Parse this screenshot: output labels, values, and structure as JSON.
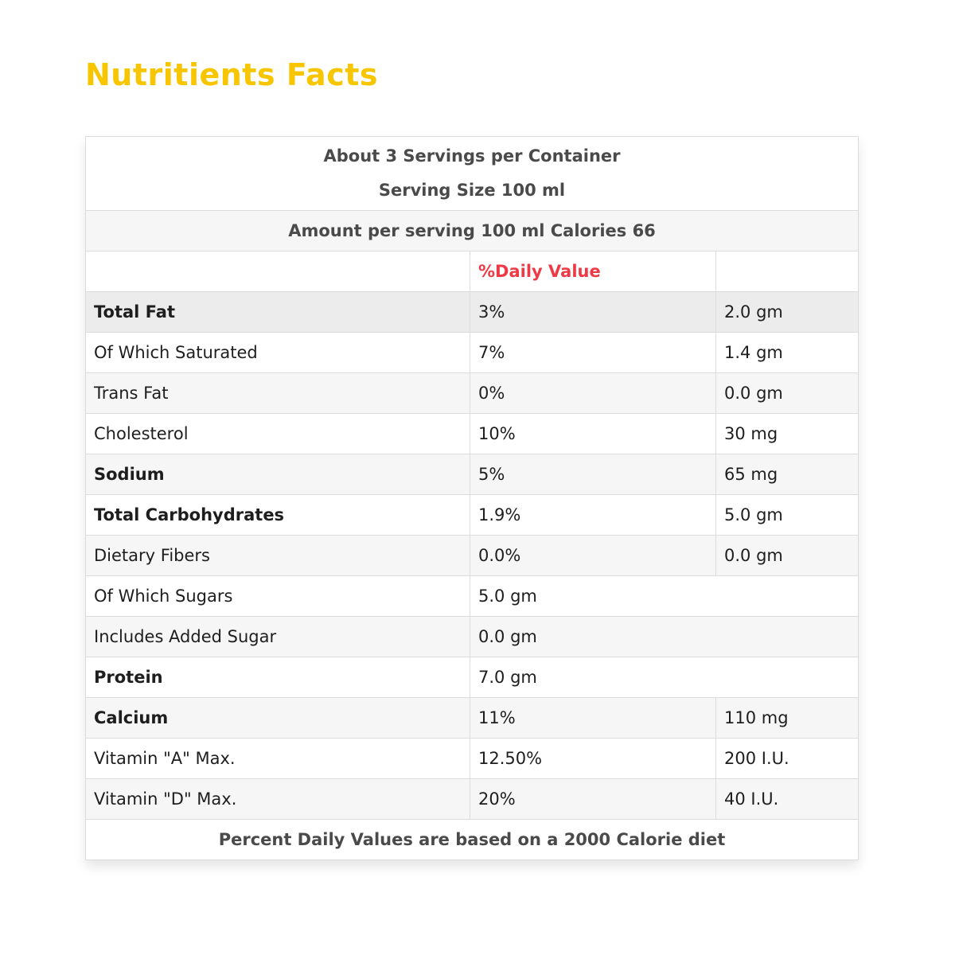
{
  "title": "Nutritients Facts",
  "table": {
    "header": [
      "About 3 Servings per Container",
      "Serving Size 100 ml"
    ],
    "amount": "Amount per serving 100 ml Calories 66",
    "daily_value_header": "%Daily Value",
    "rows": [
      [
        "Total Fat",
        "3%",
        "2.0 gm"
      ],
      [
        "Of Which Saturated",
        "7%",
        "1.4 gm"
      ],
      [
        "Trans Fat",
        "0%",
        "0.0 gm"
      ],
      [
        "Cholesterol",
        "10%",
        "30 mg"
      ],
      [
        "Sodium",
        "5%",
        "65 mg"
      ],
      [
        "Total Carbohydrates",
        "1.9%",
        "5.0 gm"
      ],
      [
        "Dietary Fibers",
        "0.0%",
        "0.0 gm"
      ],
      [
        "Of Which Sugars",
        "5.0 gm"
      ],
      [
        "Includes Added Sugar",
        "0.0 gm"
      ],
      [
        "Protein",
        "7.0 gm"
      ],
      [
        "Calcium",
        "11%",
        "110 mg"
      ],
      [
        "Vitamin \"A\" Max.",
        "12.50%",
        "200 I.U."
      ],
      [
        "Vitamin \"D\" Max.",
        "20%",
        "40 I.U."
      ]
    ],
    "footer": "Percent Daily Values are based on a 2000 Calorie diet"
  }
}
